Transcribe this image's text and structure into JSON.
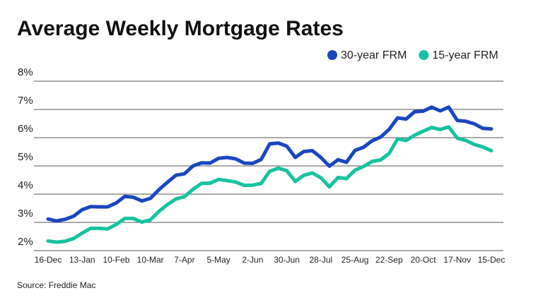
{
  "chart_data": {
    "type": "line",
    "title": "Average Weekly Mortgage Rates",
    "source": "Source: Freddie Mac",
    "categories": [
      "16-Dec",
      null,
      null,
      null,
      "13-Jan",
      null,
      null,
      null,
      "10-Feb",
      null,
      null,
      null,
      "10-Mar",
      null,
      null,
      null,
      "7-Apr",
      null,
      null,
      null,
      "5-May",
      null,
      null,
      null,
      "2-Jun",
      null,
      null,
      null,
      "30-Jun",
      null,
      null,
      null,
      "28-Jul",
      null,
      null,
      null,
      "25-Aug",
      null,
      null,
      null,
      "22-Sep",
      null,
      null,
      null,
      "20-Oct",
      null,
      null,
      null,
      "17-Nov",
      null,
      null,
      null,
      "15-Dec"
    ],
    "series": [
      {
        "name": "30-year FRM",
        "color": "#1a47c0",
        "values": [
          3.12,
          3.05,
          3.11,
          3.22,
          3.45,
          3.56,
          3.55,
          3.55,
          3.69,
          3.92,
          3.89,
          3.76,
          3.85,
          4.16,
          4.42,
          4.67,
          4.72,
          5.0,
          5.11,
          5.1,
          5.27,
          5.3,
          5.25,
          5.1,
          5.09,
          5.23,
          5.78,
          5.81,
          5.7,
          5.3,
          5.51,
          5.54,
          5.3,
          4.99,
          5.22,
          5.13,
          5.55,
          5.66,
          5.89,
          6.02,
          6.29,
          6.7,
          6.66,
          6.92,
          6.94,
          7.08,
          6.95,
          7.08,
          6.61,
          6.58,
          6.49,
          6.33,
          6.31
        ]
      },
      {
        "name": "15-year FRM",
        "color": "#17c2a0",
        "values": [
          2.34,
          2.3,
          2.33,
          2.43,
          2.62,
          2.79,
          2.79,
          2.77,
          2.93,
          3.14,
          3.14,
          3.01,
          3.09,
          3.39,
          3.63,
          3.83,
          3.91,
          4.17,
          4.38,
          4.39,
          4.52,
          4.48,
          4.43,
          4.31,
          4.32,
          4.38,
          4.81,
          4.92,
          4.83,
          4.45,
          4.67,
          4.75,
          4.58,
          4.26,
          4.59,
          4.55,
          4.85,
          4.98,
          5.16,
          5.21,
          5.44,
          5.96,
          5.9,
          6.09,
          6.23,
          6.36,
          6.29,
          6.38,
          5.98,
          5.9,
          5.76,
          5.67,
          5.54
        ]
      }
    ],
    "ylim": [
      2,
      8
    ],
    "yticks": [
      {
        "value": 2,
        "label": "2%"
      },
      {
        "value": 3,
        "label": "3%"
      },
      {
        "value": 4,
        "label": "4%"
      },
      {
        "value": 5,
        "label": "5%"
      },
      {
        "value": 6,
        "label": "6%"
      },
      {
        "value": 7,
        "label": "7%"
      },
      {
        "value": 8,
        "label": "8%"
      }
    ],
    "grid": true,
    "legend": "top-right"
  }
}
